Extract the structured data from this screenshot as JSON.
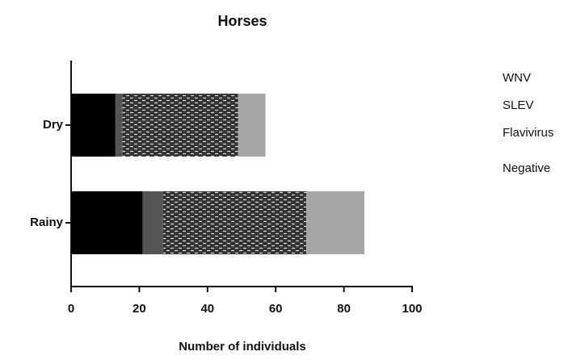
{
  "chart_data": {
    "type": "bar",
    "orientation": "horizontal",
    "stacked": true,
    "title": "Horses",
    "xlabel": "Number of individuals",
    "categories": [
      "Dry",
      "Rainy"
    ],
    "series": [
      {
        "name": "WNV",
        "color": "#000000",
        "values": [
          13,
          21
        ]
      },
      {
        "name": "SLEV",
        "color": "#555555",
        "values": [
          2,
          6
        ]
      },
      {
        "name": "Flavivirus",
        "color": "#333333",
        "hatch": "brick",
        "values": [
          34,
          42
        ]
      },
      {
        "name": "Negative",
        "color": "#a6a6a6",
        "values": [
          8,
          17
        ]
      }
    ],
    "xlim": [
      0,
      100
    ],
    "xticks": [
      0,
      20,
      40,
      60,
      80,
      100
    ],
    "legend": "right"
  }
}
